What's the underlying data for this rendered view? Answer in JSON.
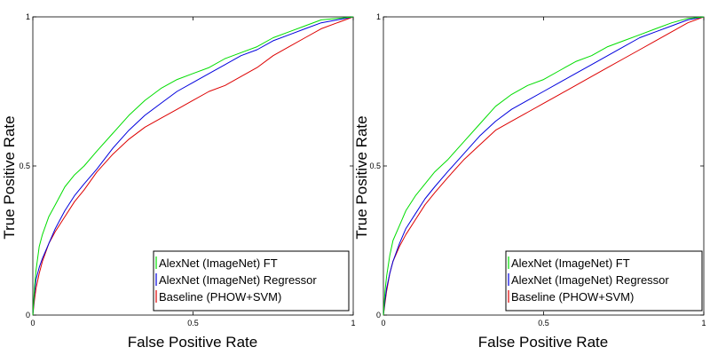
{
  "chart_data": [
    {
      "type": "line",
      "title": "",
      "xlabel": "False Positive Rate",
      "ylabel": "True Positive Rate",
      "xlim": [
        0,
        1
      ],
      "ylim": [
        0,
        1
      ],
      "xticks": [
        "0",
        "0.5",
        "1"
      ],
      "yticks": [
        "0",
        "0.5",
        "1"
      ],
      "legend_position": "bottom-right",
      "series": [
        {
          "name": "AlexNet (ImageNet) FT",
          "color": "#00dd00",
          "x": [
            0,
            0.005,
            0.01,
            0.02,
            0.03,
            0.05,
            0.07,
            0.1,
            0.13,
            0.16,
            0.2,
            0.25,
            0.3,
            0.35,
            0.4,
            0.45,
            0.5,
            0.55,
            0.6,
            0.65,
            0.7,
            0.75,
            0.8,
            0.85,
            0.9,
            0.95,
            1
          ],
          "y": [
            0,
            0.09,
            0.15,
            0.23,
            0.27,
            0.33,
            0.37,
            0.43,
            0.47,
            0.5,
            0.55,
            0.61,
            0.67,
            0.72,
            0.76,
            0.79,
            0.81,
            0.83,
            0.86,
            0.88,
            0.9,
            0.93,
            0.95,
            0.97,
            0.99,
            0.995,
            1
          ]
        },
        {
          "name": "AlexNet (ImageNet) Regressor",
          "color": "#0000dd",
          "x": [
            0,
            0.005,
            0.01,
            0.02,
            0.03,
            0.05,
            0.07,
            0.1,
            0.13,
            0.16,
            0.2,
            0.25,
            0.3,
            0.35,
            0.4,
            0.45,
            0.5,
            0.55,
            0.6,
            0.65,
            0.7,
            0.75,
            0.8,
            0.85,
            0.9,
            0.95,
            1
          ],
          "y": [
            0,
            0.07,
            0.12,
            0.16,
            0.19,
            0.24,
            0.29,
            0.35,
            0.4,
            0.44,
            0.49,
            0.56,
            0.62,
            0.67,
            0.71,
            0.75,
            0.78,
            0.81,
            0.84,
            0.87,
            0.89,
            0.92,
            0.94,
            0.96,
            0.98,
            0.99,
            1
          ]
        },
        {
          "name": "Baseline (PHOW+SVM)",
          "color": "#dd0000",
          "x": [
            0,
            0.005,
            0.01,
            0.02,
            0.03,
            0.05,
            0.07,
            0.1,
            0.13,
            0.16,
            0.2,
            0.25,
            0.3,
            0.35,
            0.4,
            0.45,
            0.5,
            0.55,
            0.6,
            0.65,
            0.7,
            0.75,
            0.8,
            0.85,
            0.9,
            0.95,
            1
          ],
          "y": [
            0,
            0.05,
            0.09,
            0.14,
            0.18,
            0.24,
            0.28,
            0.33,
            0.38,
            0.42,
            0.48,
            0.54,
            0.59,
            0.63,
            0.66,
            0.69,
            0.72,
            0.75,
            0.77,
            0.8,
            0.83,
            0.87,
            0.9,
            0.93,
            0.96,
            0.98,
            1
          ]
        }
      ]
    },
    {
      "type": "line",
      "title": "",
      "xlabel": "False Positive Rate",
      "ylabel": "True Positive Rate",
      "xlim": [
        0,
        1
      ],
      "ylim": [
        0,
        1
      ],
      "xticks": [
        "0",
        "0.5",
        "1"
      ],
      "yticks": [
        "0",
        "0.5",
        "1"
      ],
      "legend_position": "bottom-right",
      "series": [
        {
          "name": "AlexNet (ImageNet) FT",
          "color": "#00dd00",
          "x": [
            0,
            0.005,
            0.01,
            0.02,
            0.03,
            0.05,
            0.07,
            0.1,
            0.13,
            0.16,
            0.2,
            0.25,
            0.3,
            0.35,
            0.4,
            0.45,
            0.5,
            0.55,
            0.6,
            0.65,
            0.7,
            0.75,
            0.8,
            0.85,
            0.9,
            0.95,
            1
          ],
          "y": [
            0,
            0.08,
            0.13,
            0.2,
            0.25,
            0.3,
            0.35,
            0.4,
            0.44,
            0.48,
            0.52,
            0.58,
            0.64,
            0.7,
            0.74,
            0.77,
            0.79,
            0.82,
            0.85,
            0.87,
            0.9,
            0.92,
            0.94,
            0.96,
            0.98,
            0.995,
            1
          ]
        },
        {
          "name": "AlexNet (ImageNet) Regressor",
          "color": "#0000dd",
          "x": [
            0,
            0.005,
            0.01,
            0.02,
            0.03,
            0.05,
            0.07,
            0.1,
            0.13,
            0.16,
            0.2,
            0.25,
            0.3,
            0.35,
            0.4,
            0.45,
            0.5,
            0.55,
            0.6,
            0.65,
            0.7,
            0.75,
            0.8,
            0.85,
            0.9,
            0.95,
            1
          ],
          "y": [
            0,
            0.05,
            0.09,
            0.14,
            0.18,
            0.24,
            0.29,
            0.34,
            0.39,
            0.43,
            0.48,
            0.54,
            0.6,
            0.65,
            0.69,
            0.72,
            0.75,
            0.78,
            0.81,
            0.84,
            0.87,
            0.9,
            0.93,
            0.95,
            0.97,
            0.99,
            1
          ]
        },
        {
          "name": "Baseline (PHOW+SVM)",
          "color": "#dd0000",
          "x": [
            0,
            0.005,
            0.01,
            0.02,
            0.03,
            0.05,
            0.07,
            0.1,
            0.13,
            0.16,
            0.2,
            0.25,
            0.3,
            0.35,
            0.4,
            0.45,
            0.5,
            0.55,
            0.6,
            0.65,
            0.7,
            0.75,
            0.8,
            0.85,
            0.9,
            0.95,
            1
          ],
          "y": [
            0,
            0.04,
            0.08,
            0.14,
            0.18,
            0.23,
            0.27,
            0.32,
            0.37,
            0.41,
            0.46,
            0.52,
            0.57,
            0.62,
            0.65,
            0.68,
            0.71,
            0.74,
            0.77,
            0.8,
            0.83,
            0.86,
            0.89,
            0.92,
            0.95,
            0.98,
            1
          ]
        }
      ]
    }
  ]
}
